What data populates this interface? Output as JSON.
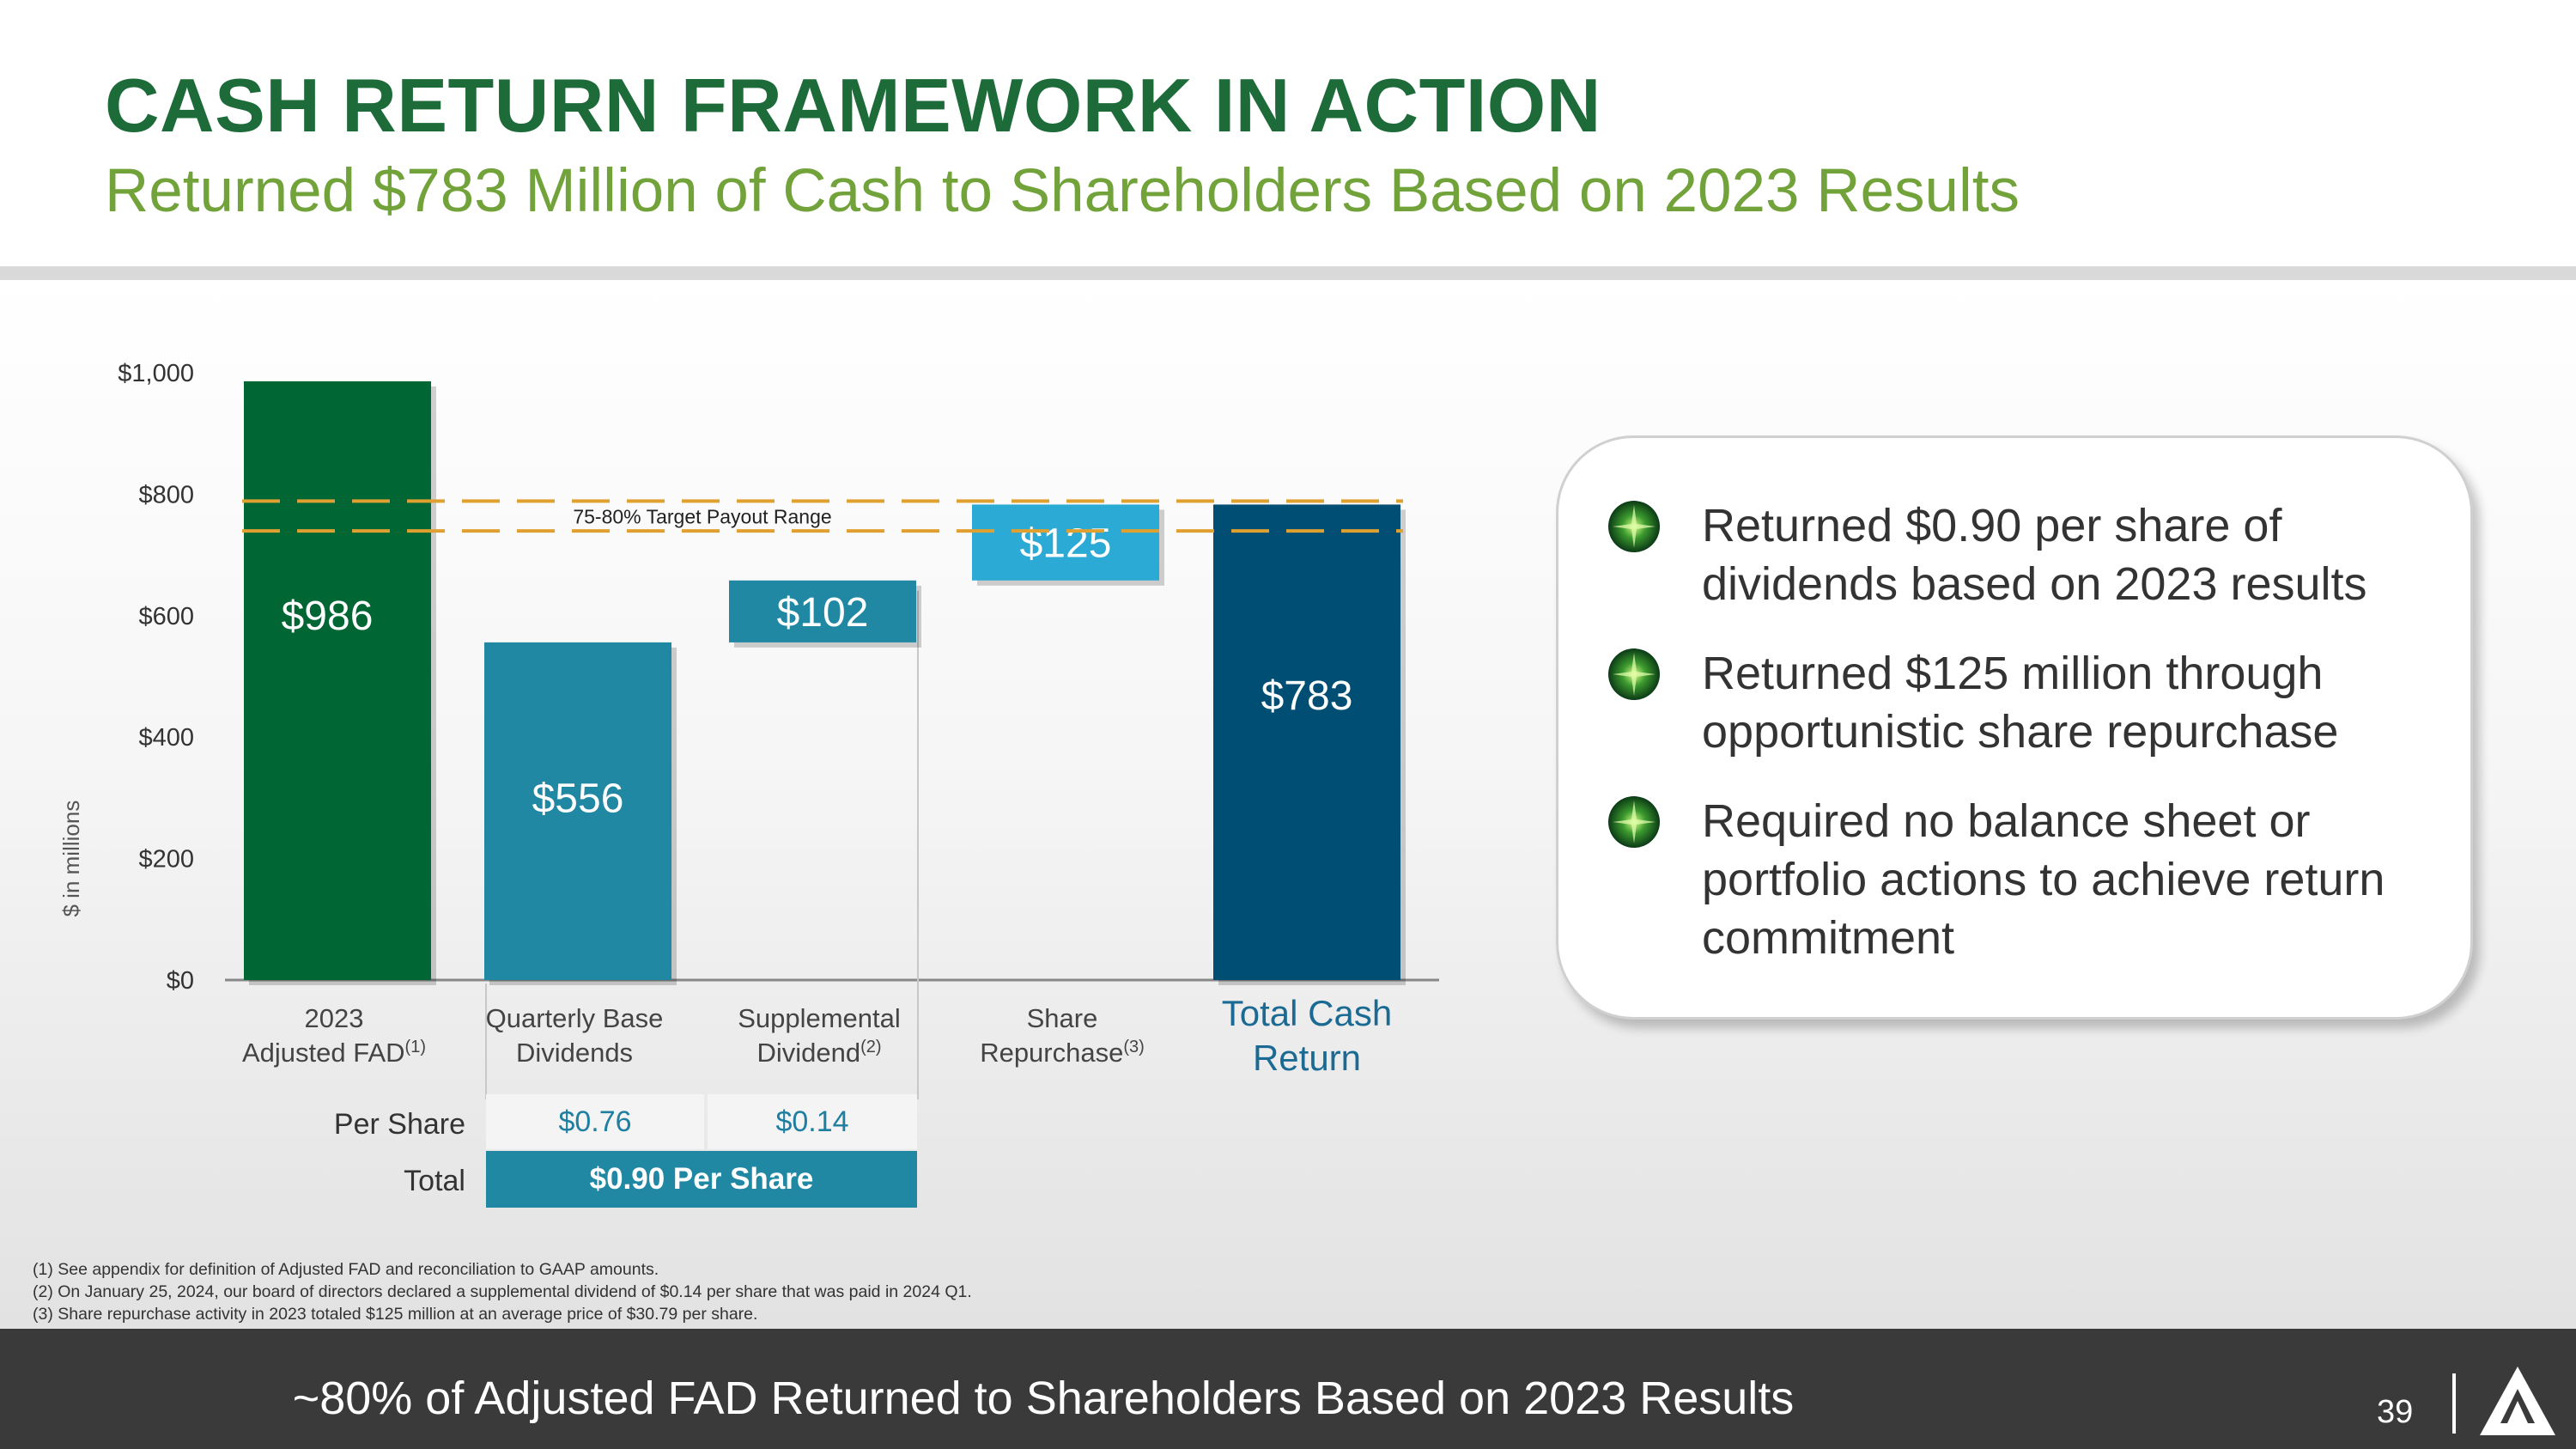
{
  "title": "CASH RETURN FRAMEWORK IN ACTION",
  "subtitle": "Returned $783 Million of Cash to Shareholders Based on 2023 Results",
  "chart_data": {
    "type": "bar",
    "ylabel": "$ in millions",
    "ylim": [
      0,
      1000
    ],
    "yticks": [
      0,
      200,
      400,
      600,
      800,
      1000
    ],
    "ytick_labels": [
      "$0",
      "$200",
      "$400",
      "$600",
      "$800",
      "$1,000"
    ],
    "grid": false,
    "target_band": {
      "label": "75-80% Target Payout Range",
      "low": 739.5,
      "high": 788.8
    },
    "bars": [
      {
        "category": [
          "2023",
          "Adjusted FAD"
        ],
        "sup": "(1)",
        "bottom": 0,
        "value": 986,
        "label": "$986",
        "color": "#006633"
      },
      {
        "category": [
          "Quarterly Base",
          "Dividends"
        ],
        "sup": "",
        "bottom": 0,
        "value": 556,
        "label": "$556",
        "color": "#2188a3"
      },
      {
        "category": [
          "Supplemental",
          "Dividend"
        ],
        "sup": "(2)",
        "bottom": 556,
        "value": 102,
        "label": "$102",
        "color": "#2188a3"
      },
      {
        "category": [
          "Share",
          "Repurchase"
        ],
        "sup": "(3)",
        "bottom": 658,
        "value": 125,
        "label": "$125",
        "color": "#2aaad4"
      },
      {
        "category": [
          "Total Cash",
          "Return"
        ],
        "sup": "",
        "bottom": 0,
        "value": 783,
        "label": "$783",
        "color": "#004e74"
      }
    ]
  },
  "table": {
    "per_share_label": "Per Share",
    "total_label": "Total",
    "per_share_values": [
      "$0.76",
      "$0.14"
    ],
    "total_value": "$0.90 Per Share"
  },
  "callout": {
    "bullets": [
      [
        "Returned $0.90 per share of",
        "dividends based on 2023 results"
      ],
      [
        "Returned $125 million through",
        "opportunistic share repurchase"
      ],
      [
        "Required no balance sheet or",
        "portfolio actions to achieve return",
        "commitment"
      ]
    ],
    "bullet_icon": "green-starburst-icon"
  },
  "footnotes": [
    "(1) See appendix for definition of Adjusted FAD and reconciliation to GAAP amounts.",
    "(2) On January 25, 2024, our board of directors declared a supplemental dividend of $0.14 per share that was paid in 2024 Q1.",
    "(3) Share repurchase activity in 2023 totaled $125 million at an average price of $30.79 per share."
  ],
  "footer": {
    "text": "~80% of Adjusted FAD Returned to Shareholders Based on 2023 Results",
    "page_number": "39",
    "logo": "triangle-logo-icon"
  },
  "colors": {
    "title": "#1e6b3a",
    "subtitle": "#72a33b",
    "dashed_line": "#e0a030",
    "footer_bg": "#3a3a3a"
  }
}
